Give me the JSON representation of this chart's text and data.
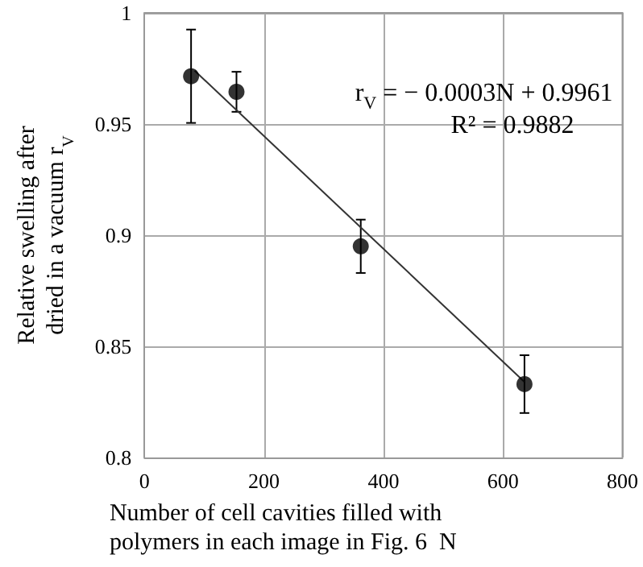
{
  "chart_data": {
    "type": "scatter",
    "xlabel": "Number of cell cavities filled with\npolymers in each image in Fig. 6  N",
    "ylabel": "Relative swelling after\ndried in a vacuum r$_{V}$",
    "annotations": [
      "r$_{V}$ = − 0.0003N + 0.9961",
      "R² = 0.9882"
    ],
    "series": [
      {
        "color": "#000000",
        "marker": "circle",
        "x": [
          78,
          154,
          362,
          636
        ],
        "values": [
          0.9715,
          0.9645,
          0.895,
          0.833
        ],
        "errors": [
          0.021,
          0.009,
          0.012,
          0.013
        ]
      },
      {
        "type": "line",
        "color": "#333333",
        "marker": "none",
        "line_style": "solid",
        "x": [
          84,
          636
        ],
        "values": [
          0.974,
          0.834
        ]
      }
    ],
    "xlim": [
      0,
      800
    ],
    "xticks": [
      0,
      200,
      400,
      600,
      800
    ],
    "ylim": [
      0.8,
      1
    ],
    "yticks": [
      0.8,
      0.85,
      0.9,
      0.95,
      1
    ],
    "grid": true
  }
}
